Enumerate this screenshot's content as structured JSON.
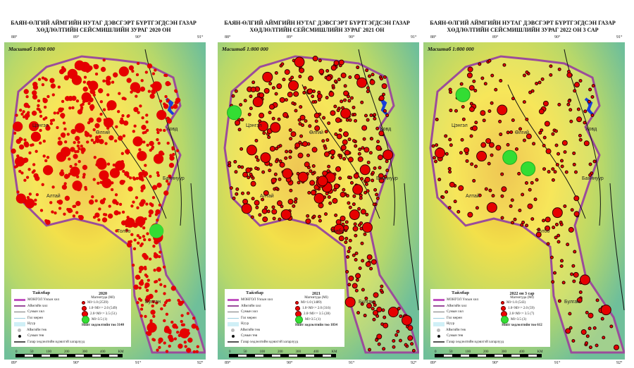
{
  "panels": [
    {
      "title": "БАЯН-ӨЛГИЙ АЙМГИЙН НУТАГ ДЭВСГЭРТ БҮРТГЭГДСЭН ГАЗАР ХӨДЛӨЛТИЙН СЕЙСМИШЛИЙН ЗУРАГ 2020 ОН",
      "year": "2020",
      "classes": [
        "Ml<1.0  (2539)",
        "1.0<Ml<= 2.0  (549)",
        "2.0<Ml<= 3.5  (51)",
        "Ml>3.5  (1)"
      ],
      "total": "Нийт хөдлөлтийн тоо 3140",
      "dots": [
        420,
        150,
        40,
        1
      ]
    },
    {
      "title": "БАЯН-ӨЛГИЙ АЙМГИЙН НУТАГ ДЭВСГЭРТ БҮРТГЭГДСЭН ГАЗАР ХӨДЛӨЛТИЙН СЕЙСМИШЛИЙН ЗУРАГ 2021 ОН",
      "year": "2021",
      "classes": [
        "Ml<1.0  (1489)",
        "1.0<Ml<= 2.0  (316)",
        "2.0<Ml<= 3.5  (28)",
        "Ml>3.5  (1)"
      ],
      "total": "Нийт хөдлөлтийн тоо 1834",
      "dots": [
        380,
        120,
        28,
        1
      ]
    },
    {
      "title": "БАЯН-ӨЛГИЙ АЙМГИЙН НУТАГ ДЭВСГЭРТ БҮРТГЭГДСЭН ГАЗАР ХӨДЛӨЛТИЙН СЕЙСМИШЛИЙН ЗУРАГ 2022 ОН 3 САР",
      "year": "2022 он 3 сар",
      "classes": [
        "Ml<1.0  (543)",
        "1.0<Ml<= 2.0  (59)",
        "2.0<Ml<= 3.5  (7)",
        "Ml>3.5  (3)"
      ],
      "total": "Нийт хөдлөлтийн тоо 612",
      "dots": [
        200,
        45,
        7,
        3
      ]
    }
  ],
  "scale": "Масштаб 1:800 000",
  "legend": {
    "title": "Тайлбар",
    "magnitude": "Магнитуда (Ml)",
    "items": [
      "МОНГОЛ Улсын хил",
      "Аймгийн хил",
      "Сумын хил",
      "Гол мөрөн",
      "Нуур",
      "Аймгийн төв",
      "Сумын төв",
      "Газар хөдлөлтийн идэвхтэй хагарлууд"
    ]
  },
  "top_ticks": [
    "88°",
    "89°",
    "90°",
    "91°"
  ],
  "bottom_ticks": [
    "89°",
    "90°",
    "91°",
    "92°"
  ],
  "scalebar": {
    "labels": [
      "0",
      "50",
      "100",
      "200",
      "300",
      "400"
    ],
    "unit": "KM"
  },
  "places": [
    "Цэнгэл",
    "Өлгий",
    "Ховд",
    "Баяннуур",
    "Алтай",
    "Толбо",
    "Булган"
  ],
  "colors": {
    "quake": "#e60000",
    "big_quake": "#33dd33",
    "border": "#9b4c9b",
    "lake": "#1a3fd9"
  }
}
